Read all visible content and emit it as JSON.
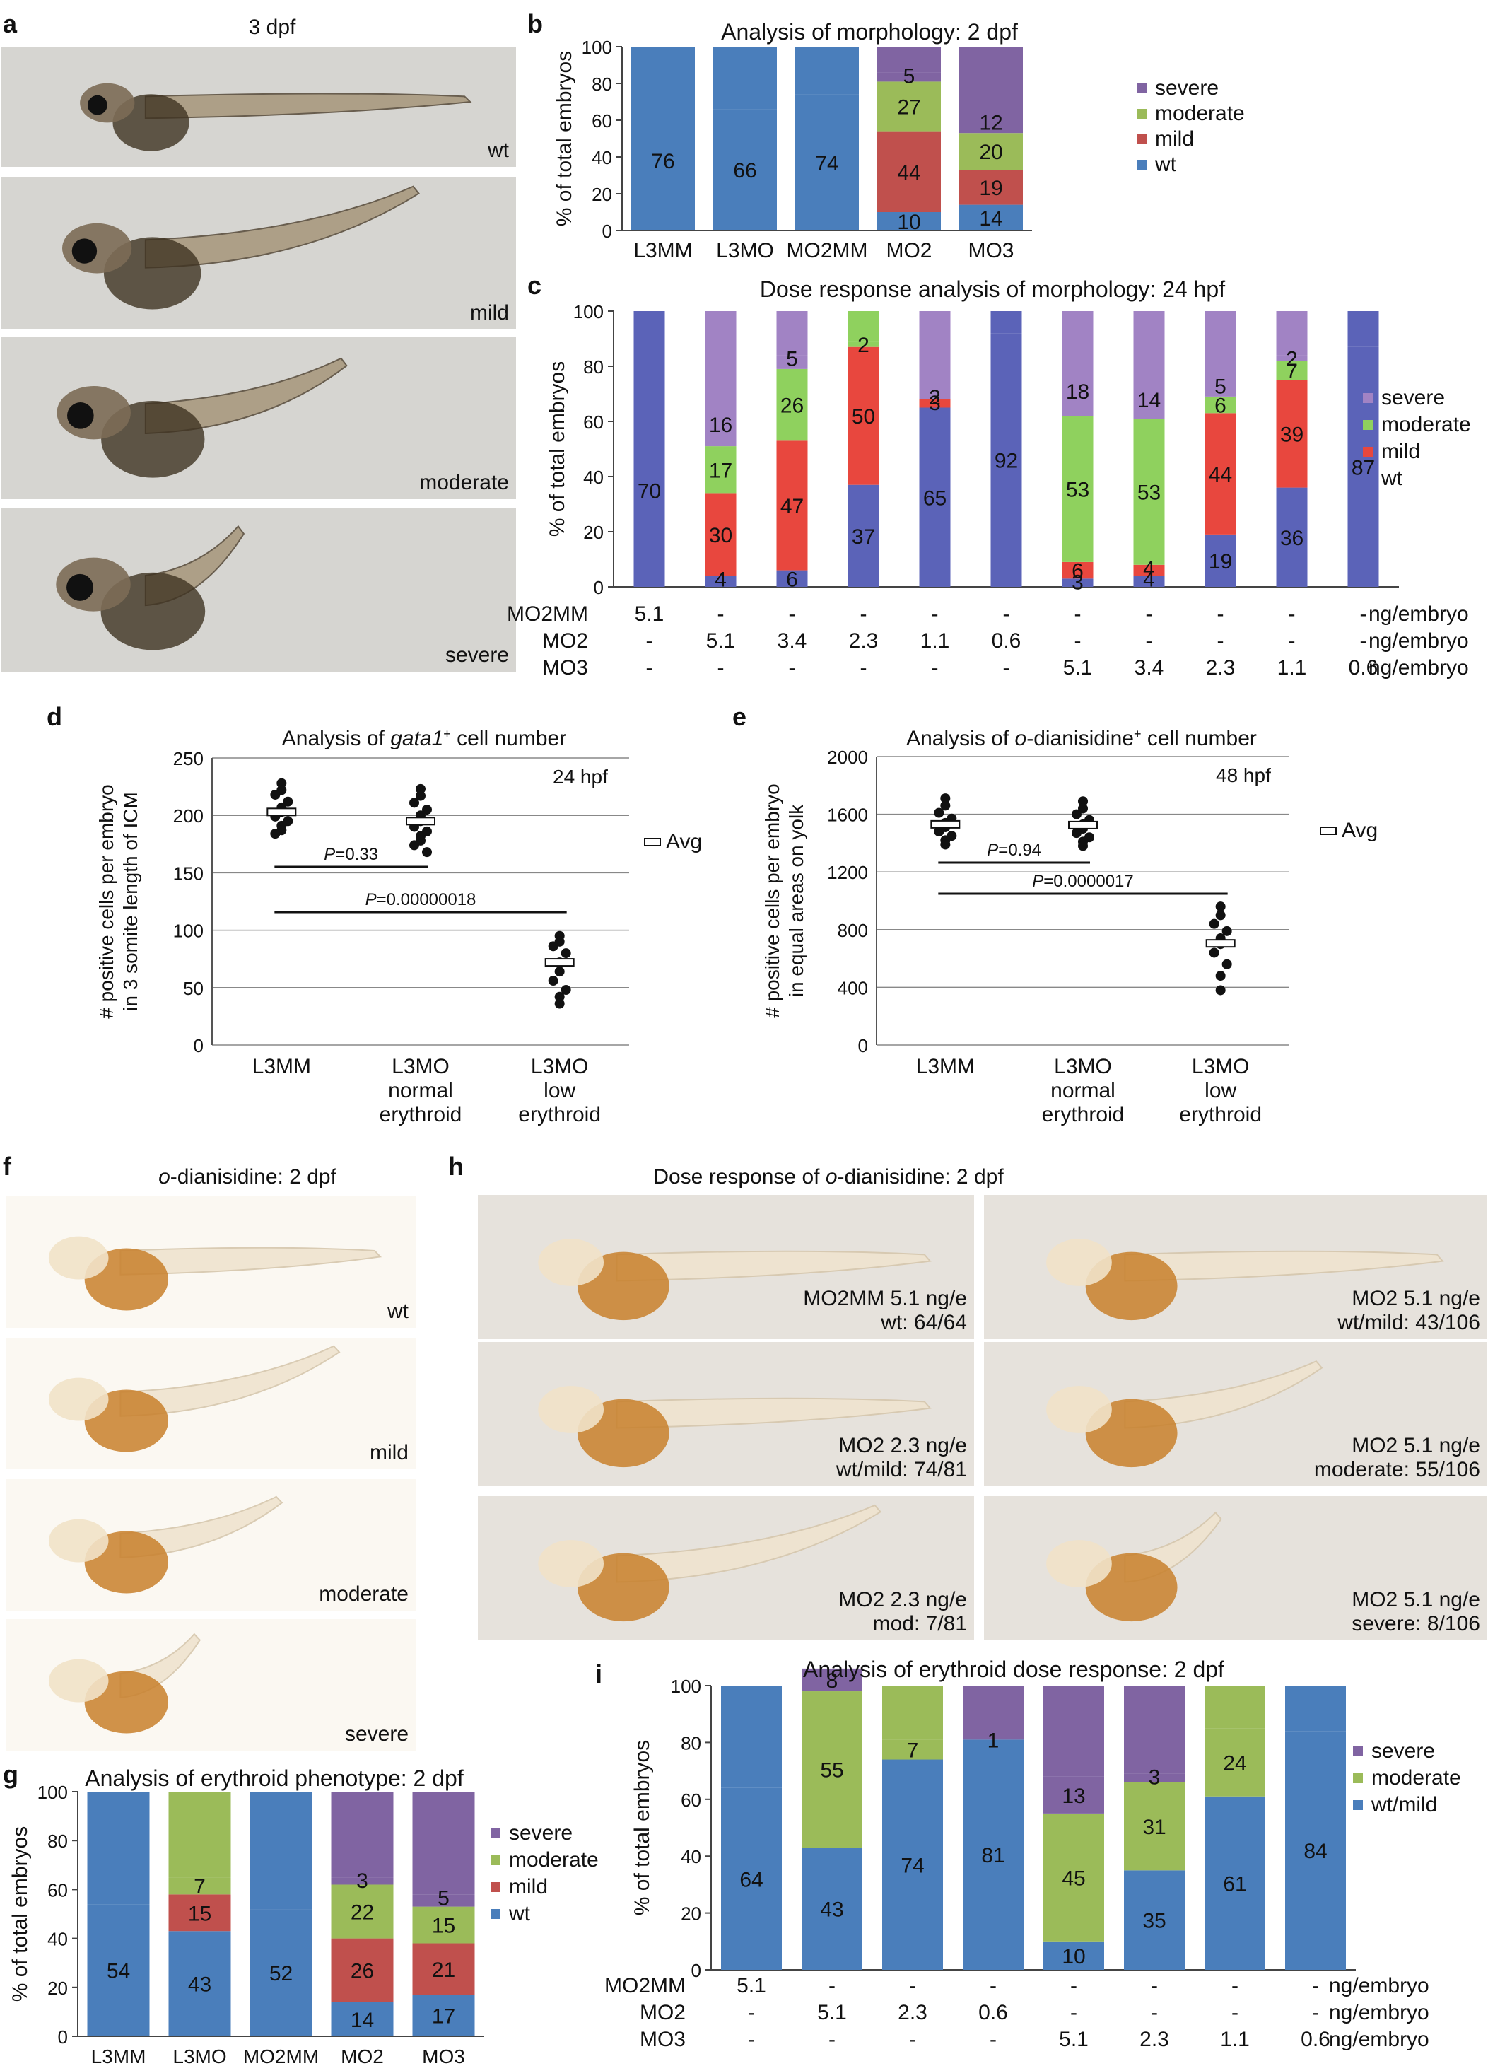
{
  "colors": {
    "wt": "#4A7EBB",
    "mild": "#C0504D",
    "moderate": "#9BBB59",
    "severe": "#8064A2",
    "wt_dark": "#5B63B8",
    "mild_dark": "#E8473E",
    "moderate_dark": "#8FD15E",
    "severe_dark": "#A183C4"
  },
  "panel_a": {
    "letter": "a",
    "title": "3 dpf",
    "photos": [
      "wt",
      "mild",
      "moderate",
      "severe"
    ]
  },
  "panel_f": {
    "letter": "f",
    "title_italic": "o",
    "title_rest": "-dianisidine: 2 dpf",
    "photos": [
      "wt",
      "mild",
      "moderate",
      "severe"
    ]
  },
  "panel_h": {
    "letter": "h",
    "title_prefix": "Dose response of ",
    "title_italic": "o",
    "title_rest": "-dianisidine: 2 dpf",
    "photos": [
      [
        "MO2MM 5.1 ng/e",
        "wt: 64/64"
      ],
      [
        "MO2 5.1 ng/e",
        "wt/mild: 43/106"
      ],
      [
        "MO2 2.3 ng/e",
        "wt/mild: 74/81"
      ],
      [
        "MO2 5.1 ng/e",
        "moderate: 55/106"
      ],
      [
        "MO2 2.3 ng/e",
        "mod: 7/81"
      ],
      [
        "MO2 5.1 ng/e",
        "severe: 8/106"
      ]
    ]
  },
  "chart_data": [
    {
      "id": "b",
      "type": "bar",
      "stacked": true,
      "title": "Analysis of morphology: 2 dpf",
      "ylabel": "% of total embryos",
      "ylim": [
        0,
        100
      ],
      "yticks": [
        0,
        20,
        40,
        60,
        80,
        100
      ],
      "categories": [
        "L3MM",
        "L3MO",
        "MO2MM",
        "MO2",
        "MO3"
      ],
      "series": [
        {
          "name": "wt",
          "values": [
            76,
            66,
            74,
            10,
            14
          ]
        },
        {
          "name": "mild",
          "values": [
            0,
            0,
            0,
            44,
            19
          ]
        },
        {
          "name": "moderate",
          "values": [
            0,
            0,
            0,
            27,
            20
          ]
        },
        {
          "name": "severe",
          "values": [
            0,
            0,
            0,
            5,
            12
          ]
        }
      ],
      "legend": [
        "severe",
        "moderate",
        "mild",
        "wt"
      ],
      "legend_position": "right"
    },
    {
      "id": "c",
      "type": "bar",
      "stacked": true,
      "title": "Dose response analysis of morphology: 24 hpf",
      "ylabel": "% of total embryos",
      "ylim": [
        0,
        100
      ],
      "yticks": [
        0,
        20,
        40,
        60,
        80,
        100
      ],
      "series": [
        {
          "name": "wt",
          "values": [
            70,
            4,
            6,
            37,
            65,
            92,
            3,
            4,
            19,
            36,
            87
          ]
        },
        {
          "name": "mild",
          "values": [
            0,
            30,
            47,
            50,
            3,
            0,
            6,
            4,
            44,
            39,
            0
          ]
        },
        {
          "name": "moderate",
          "values": [
            0,
            17,
            26,
            2,
            0,
            0,
            53,
            53,
            6,
            7,
            0
          ]
        },
        {
          "name": "severe",
          "values": [
            0,
            16,
            5,
            0,
            2,
            0,
            18,
            14,
            5,
            2,
            0
          ]
        }
      ],
      "dose_table": [
        {
          "name": "MO2MM",
          "values": [
            "5.1",
            "-",
            "-",
            "-",
            "-",
            "-",
            "-",
            "-",
            "-",
            "-",
            "-"
          ],
          "unit": "ng/embryo"
        },
        {
          "name": "MO2",
          "values": [
            "-",
            "5.1",
            "3.4",
            "2.3",
            "1.1",
            "0.6",
            "-",
            "-",
            "-",
            "-",
            "-"
          ],
          "unit": "ng/embryo"
        },
        {
          "name": "MO3",
          "values": [
            "-",
            "-",
            "-",
            "-",
            "-",
            "-",
            "5.1",
            "3.4",
            "2.3",
            "1.1",
            "0.6"
          ],
          "unit": "ng/embryo"
        }
      ],
      "legend": [
        "severe",
        "moderate",
        "mild",
        "wt"
      ],
      "legend_position": "right"
    },
    {
      "id": "d",
      "type": "scatter",
      "title_prefix": "Analysis of ",
      "title_italic": "gata1",
      "title_sup": "+",
      "title_rest": " cell number",
      "annotation": "24 hpf",
      "ylabel_lines": [
        "# positive cells per embryo",
        "in 3 somite length of ICM"
      ],
      "ylim": [
        0,
        250
      ],
      "yticks": [
        0,
        50,
        100,
        150,
        200,
        250
      ],
      "categories": [
        [
          "L3MM"
        ],
        [
          "L3MO",
          "normal",
          "erythroid"
        ],
        [
          "L3MO",
          "low",
          "erythroid"
        ]
      ],
      "groups": [
        {
          "avg": 203,
          "points": [
            228,
            222,
            218,
            212,
            207,
            203,
            199,
            195,
            191,
            187,
            184
          ]
        },
        {
          "avg": 195,
          "points": [
            223,
            217,
            211,
            205,
            200,
            195,
            190,
            186,
            182,
            178,
            174,
            168
          ]
        },
        {
          "avg": 72,
          "points": [
            95,
            90,
            86,
            80,
            72,
            64,
            56,
            48,
            42,
            36
          ]
        }
      ],
      "comparisons": [
        {
          "label_italic": "P",
          "label_rest": "=0.33",
          "from": 0,
          "to": 1
        },
        {
          "label_italic": "P",
          "label_rest": "=0.00000018",
          "from": 0,
          "to": 2
        }
      ],
      "legend": "Avg"
    },
    {
      "id": "e",
      "type": "scatter",
      "title_prefix": "Analysis of ",
      "title_italic": "o",
      "title_rest": "-dianisidine",
      "title_sup": "+",
      "title_end": " cell number",
      "annotation": "48 hpf",
      "ylabel_lines": [
        "# positive cells per embryo",
        "in equal areas on yolk"
      ],
      "ylim": [
        0,
        2000
      ],
      "yticks": [
        0,
        400,
        800,
        1200,
        1600,
        2000
      ],
      "categories": [
        [
          "L3MM"
        ],
        [
          "L3MO",
          "normal",
          "erythroid"
        ],
        [
          "L3MO",
          "low",
          "erythroid"
        ]
      ],
      "groups": [
        {
          "avg": 1530,
          "points": [
            1710,
            1660,
            1610,
            1570,
            1540,
            1510,
            1480,
            1450,
            1420,
            1390
          ]
        },
        {
          "avg": 1525,
          "points": [
            1690,
            1640,
            1600,
            1560,
            1530,
            1500,
            1470,
            1440,
            1410,
            1380
          ]
        },
        {
          "avg": 705,
          "points": [
            960,
            900,
            840,
            790,
            740,
            700,
            640,
            560,
            480,
            380
          ]
        }
      ],
      "comparisons": [
        {
          "label_italic": "P",
          "label_rest": "=0.94",
          "from": 0,
          "to": 1
        },
        {
          "label_italic": "P",
          "label_rest": "=0.0000017",
          "from": 0,
          "to": 2
        }
      ],
      "legend": "Avg"
    },
    {
      "id": "g",
      "type": "bar",
      "stacked": true,
      "title": "Analysis of erythroid phenotype: 2 dpf",
      "ylabel": "% of total embryos",
      "ylim": [
        0,
        100
      ],
      "yticks": [
        0,
        20,
        40,
        60,
        80,
        100
      ],
      "categories": [
        "L3MM",
        "L3MO",
        "MO2MM",
        "MO2",
        "MO3"
      ],
      "series": [
        {
          "name": "wt",
          "values": [
            54,
            43,
            52,
            14,
            17
          ]
        },
        {
          "name": "mild",
          "values": [
            0,
            15,
            0,
            26,
            21
          ]
        },
        {
          "name": "moderate",
          "values": [
            0,
            7,
            0,
            22,
            15
          ]
        },
        {
          "name": "severe",
          "values": [
            0,
            0,
            0,
            3,
            5
          ]
        }
      ],
      "legend": [
        "severe",
        "moderate",
        "mild",
        "wt"
      ],
      "legend_position": "right"
    },
    {
      "id": "i",
      "type": "bar",
      "stacked": true,
      "title": "Analysis of erythroid dose response: 2 dpf",
      "ylabel": "% of total embryos",
      "ylim": [
        0,
        100
      ],
      "yticks": [
        0,
        20,
        40,
        60,
        80,
        100
      ],
      "series": [
        {
          "name": "wt/mild",
          "values": [
            64,
            43,
            74,
            81,
            10,
            35,
            61,
            84
          ]
        },
        {
          "name": "moderate",
          "values": [
            0,
            55,
            7,
            0,
            45,
            31,
            24,
            0
          ]
        },
        {
          "name": "severe",
          "values": [
            0,
            8,
            0,
            1,
            13,
            3,
            0,
            0
          ]
        }
      ],
      "dose_table": [
        {
          "name": "MO2MM",
          "values": [
            "5.1",
            "-",
            "-",
            "-",
            "-",
            "-",
            "-",
            "-"
          ],
          "unit": "ng/embryo"
        },
        {
          "name": "MO2",
          "values": [
            "-",
            "5.1",
            "2.3",
            "0.6",
            "-",
            "-",
            "-",
            "-"
          ],
          "unit": "ng/embryo"
        },
        {
          "name": "MO3",
          "values": [
            "-",
            "-",
            "-",
            "-",
            "5.1",
            "2.3",
            "1.1",
            "0.6"
          ],
          "unit": "ng/embryo"
        }
      ],
      "legend": [
        "severe",
        "moderate",
        "wt/mild"
      ],
      "legend_position": "right"
    }
  ]
}
